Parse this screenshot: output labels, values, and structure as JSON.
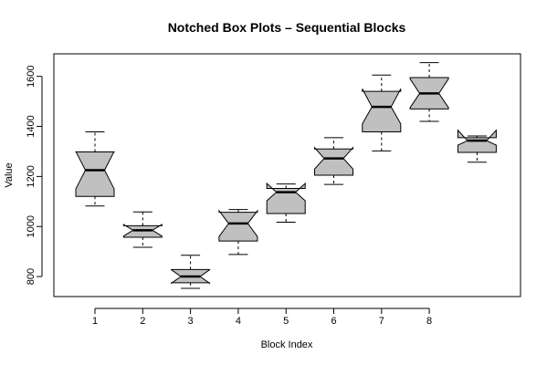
{
  "chart_data": {
    "type": "box",
    "notched": true,
    "title": "Notched Box Plots – Sequential Blocks",
    "xlabel": "Block Index",
    "ylabel": "Value",
    "ylim": [
      720,
      1690
    ],
    "yticks": [
      800,
      1000,
      1200,
      1400,
      1600
    ],
    "xticks": [
      "1",
      "2",
      "3",
      "4",
      "5",
      "6",
      "7",
      "8"
    ],
    "grid": false,
    "color": "#c0c0c0",
    "boxes": [
      {
        "index": "1",
        "min": 1082,
        "q1": 1120,
        "median": 1225,
        "q3": 1298,
        "max": 1378,
        "notch_low": 1150,
        "notch_high": 1300
      },
      {
        "index": "2",
        "min": 917,
        "q1": 957,
        "median": 985,
        "q3": 1003,
        "max": 1058,
        "notch_low": 962,
        "notch_high": 1008
      },
      {
        "index": "3",
        "min": 753,
        "q1": 775,
        "median": 800,
        "q3": 828,
        "max": 885,
        "notch_low": 773,
        "notch_high": 827
      },
      {
        "index": "4",
        "min": 888,
        "q1": 942,
        "median": 1012,
        "q3": 1057,
        "max": 1068,
        "notch_low": 960,
        "notch_high": 1063
      },
      {
        "index": "5",
        "min": 1017,
        "q1": 1052,
        "median": 1137,
        "q3": 1152,
        "max": 1170,
        "notch_low": 1103,
        "notch_high": 1172
      },
      {
        "index": "6",
        "min": 1168,
        "q1": 1205,
        "median": 1272,
        "q3": 1310,
        "max": 1355,
        "notch_low": 1230,
        "notch_high": 1315
      },
      {
        "index": "7",
        "min": 1302,
        "q1": 1378,
        "median": 1478,
        "q3": 1540,
        "max": 1605,
        "notch_low": 1410,
        "notch_high": 1550
      },
      {
        "index": "8",
        "min": 1420,
        "q1": 1470,
        "median": 1532,
        "q3": 1595,
        "max": 1655,
        "notch_low": 1475,
        "notch_high": 1590
      },
      {
        "index": "",
        "min": 1257,
        "q1": 1296,
        "median": 1343,
        "q3": 1355,
        "max": 1362,
        "notch_low": 1325,
        "notch_high": 1385
      }
    ]
  }
}
